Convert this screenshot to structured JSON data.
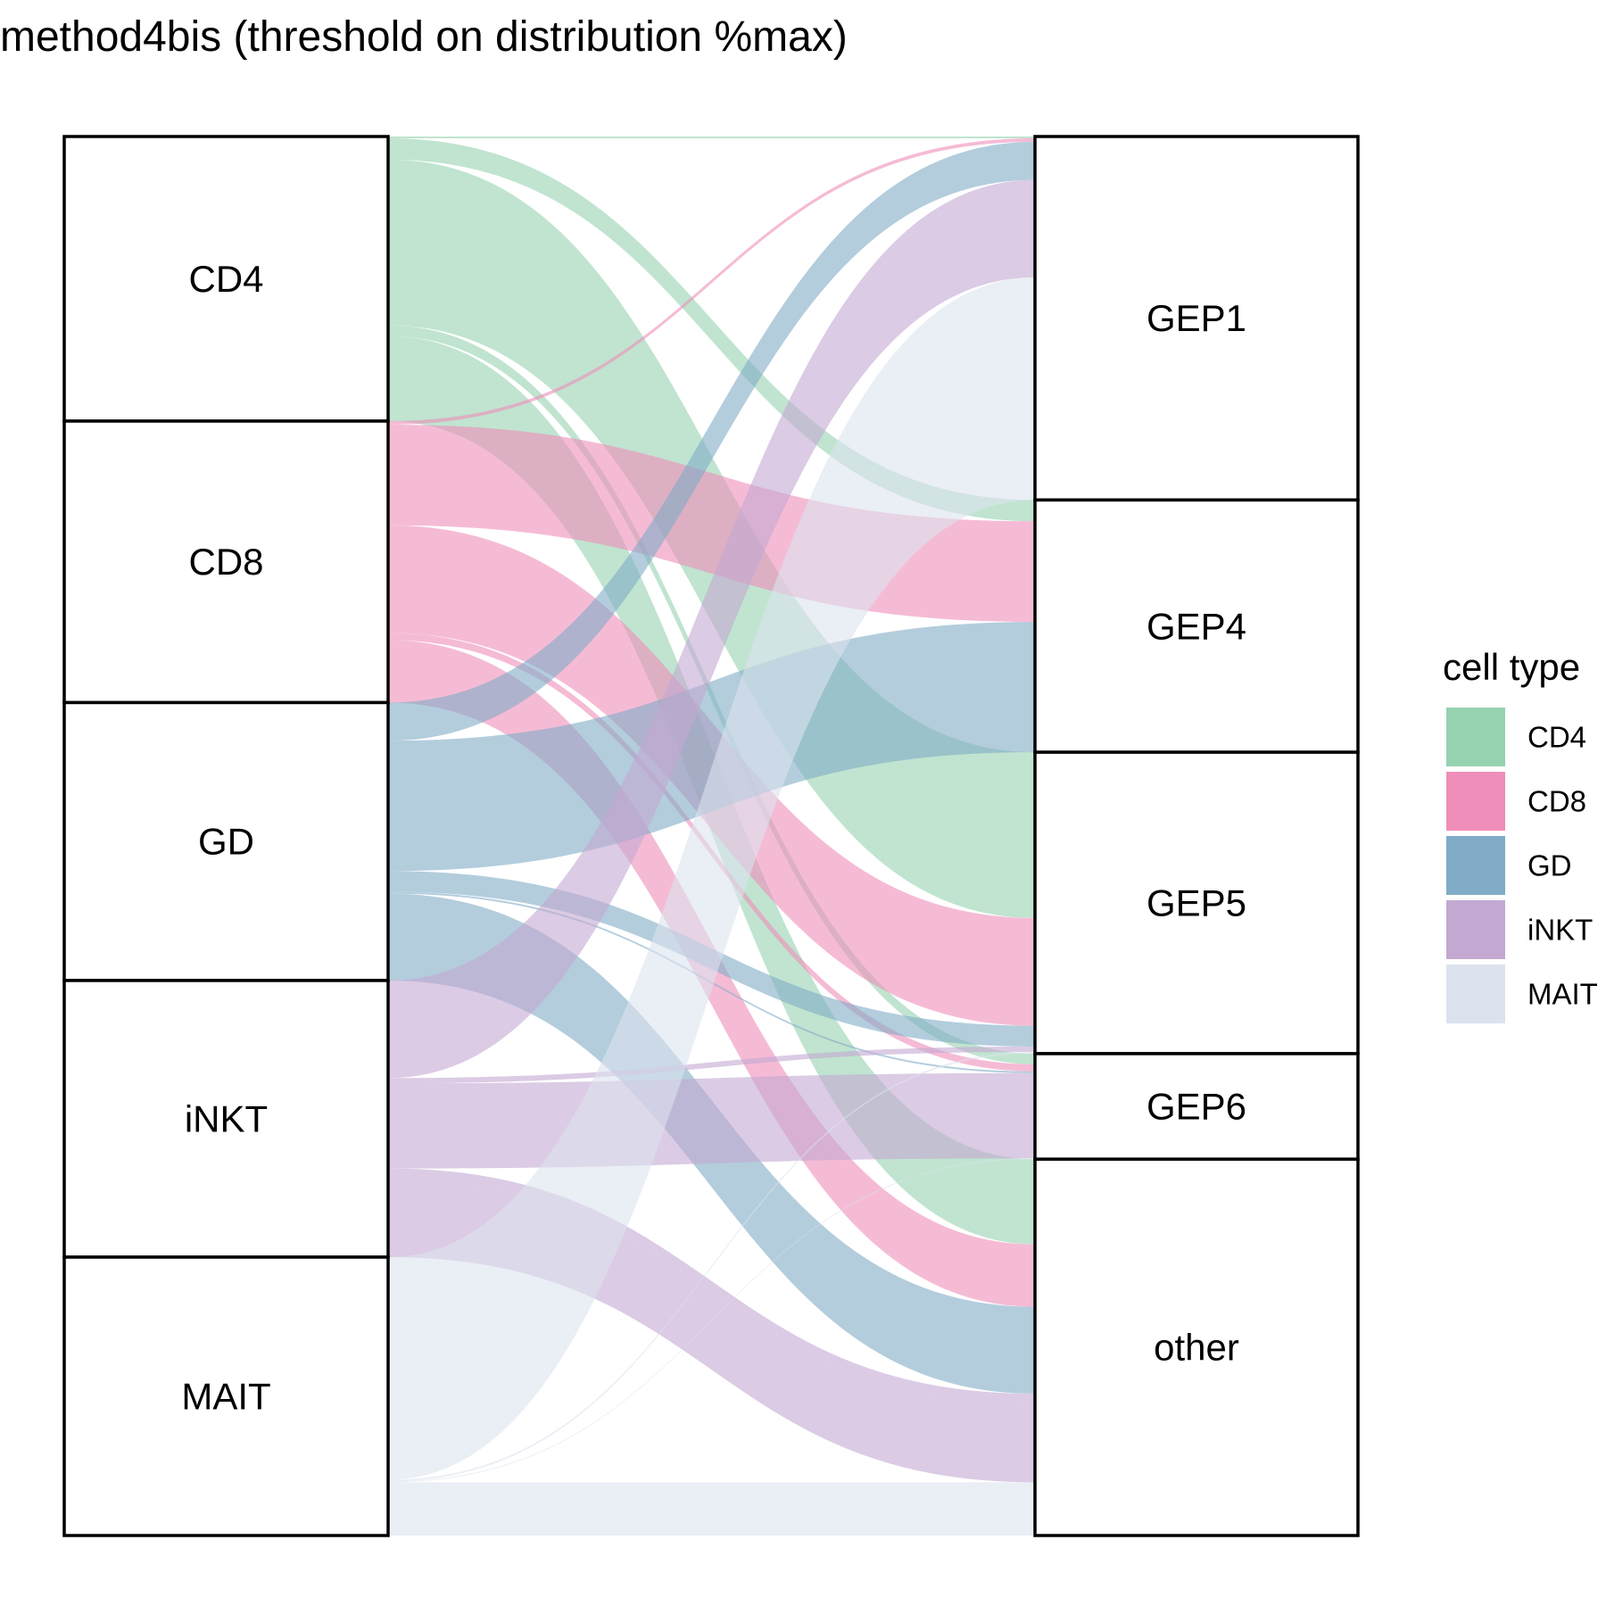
{
  "chart_data": {
    "type": "alluvial",
    "title": "method4bis (threshold on distribution %max)",
    "left_axis": [
      "CD4",
      "CD8",
      "GD",
      "iNKT",
      "MAIT"
    ],
    "right_axis": [
      "GEP1",
      "GEP4",
      "GEP5",
      "GEP6",
      "other"
    ],
    "legend": {
      "title": "cell type",
      "position": "right",
      "entries": [
        {
          "name": "CD4",
          "color": "#96D2B0"
        },
        {
          "name": "CD8",
          "color": "#EF8EB9"
        },
        {
          "name": "GD",
          "color": "#80ACC7"
        },
        {
          "name": "iNKT",
          "color": "#C3A9D2"
        },
        {
          "name": "MAIT",
          "color": "#DCE2EE"
        }
      ]
    },
    "flows": [
      {
        "from": "CD4",
        "to": "GEP1",
        "value": 0.4
      },
      {
        "from": "CD4",
        "to": "GEP4",
        "value": 4.8
      },
      {
        "from": "CD4",
        "to": "GEP5",
        "value": 37.4
      },
      {
        "from": "CD4",
        "to": "GEP6",
        "value": 2.4
      },
      {
        "from": "CD4",
        "to": "other",
        "value": 19.2
      },
      {
        "from": "CD8",
        "to": "GEP1",
        "value": 0.8
      },
      {
        "from": "CD8",
        "to": "GEP4",
        "value": 22.7
      },
      {
        "from": "CD8",
        "to": "GEP5",
        "value": 24.3
      },
      {
        "from": "CD8",
        "to": "GEP6",
        "value": 1.6
      },
      {
        "from": "CD8",
        "to": "other",
        "value": 14.1
      },
      {
        "from": "GD",
        "to": "GEP1",
        "value": 8.6
      },
      {
        "from": "GD",
        "to": "GEP4",
        "value": 29.4
      },
      {
        "from": "GD",
        "to": "GEP5",
        "value": 4.7
      },
      {
        "from": "GD",
        "to": "GEP6",
        "value": 0.4
      },
      {
        "from": "GD",
        "to": "other",
        "value": 19.6
      },
      {
        "from": "iNKT",
        "to": "GEP1",
        "value": 22.0
      },
      {
        "from": "iNKT",
        "to": "GEP5",
        "value": 1.2
      },
      {
        "from": "iNKT",
        "to": "GEP6",
        "value": 19.2
      },
      {
        "from": "iNKT",
        "to": "other",
        "value": 2.4
      },
      {
        "from": "iNKT",
        "to": "other",
        "value": 17.6
      },
      {
        "from": "MAIT",
        "to": "GEP1",
        "value": 50.2
      },
      {
        "from": "MAIT",
        "to": "GEP5",
        "value": 0.4
      },
      {
        "from": "MAIT",
        "to": "GEP6",
        "value": 0.2
      },
      {
        "from": "MAIT",
        "to": "other",
        "value": 0.2
      },
      {
        "from": "MAIT",
        "to": "other",
        "value": 11.8
      }
    ]
  }
}
